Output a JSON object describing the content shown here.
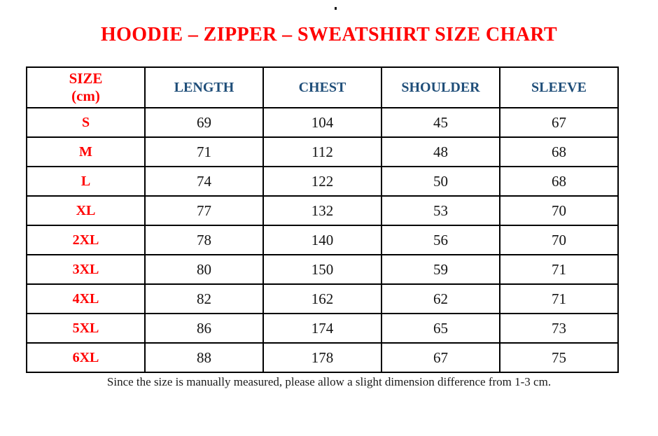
{
  "title": "HOODIE – ZIPPER – SWEATSHIRT SIZE CHART",
  "stray_mark": "",
  "table": {
    "header": {
      "size": {
        "line1": "SIZE",
        "line2": "(cm)"
      },
      "measures": [
        "LENGTH",
        "CHEST",
        "SHOULDER",
        "SLEEVE"
      ]
    },
    "rows": [
      {
        "label": "S",
        "values": [
          "69",
          "104",
          "45",
          "67"
        ]
      },
      {
        "label": "M",
        "values": [
          "71",
          "112",
          "48",
          "68"
        ]
      },
      {
        "label": "L",
        "values": [
          "74",
          "122",
          "50",
          "68"
        ]
      },
      {
        "label": "XL",
        "values": [
          "77",
          "132",
          "53",
          "70"
        ]
      },
      {
        "label": "2XL",
        "values": [
          "78",
          "140",
          "56",
          "70"
        ]
      },
      {
        "label": "3XL",
        "values": [
          "80",
          "150",
          "59",
          "71"
        ]
      },
      {
        "label": "4XL",
        "values": [
          "82",
          "162",
          "62",
          "71"
        ]
      },
      {
        "label": "5XL",
        "values": [
          "86",
          "174",
          "65",
          "73"
        ]
      },
      {
        "label": "6XL",
        "values": [
          "88",
          "178",
          "67",
          "75"
        ]
      }
    ]
  },
  "footer_note": "Since the size is manually measured, please allow a slight dimension difference from 1-3 cm.",
  "colors": {
    "title_red": "#ff0000",
    "size_label_red": "#ff0000",
    "header_blue": "#1f4e79",
    "value_black": "#141414",
    "border_black": "#000000"
  },
  "chart_data": {
    "type": "table",
    "title": "HOODIE – ZIPPER – SWEATSHIRT SIZE CHART",
    "columns": [
      "SIZE (cm)",
      "LENGTH",
      "CHEST",
      "SHOULDER",
      "SLEEVE"
    ],
    "rows": [
      [
        "S",
        69,
        104,
        45,
        67
      ],
      [
        "M",
        71,
        112,
        48,
        68
      ],
      [
        "L",
        74,
        122,
        50,
        68
      ],
      [
        "XL",
        77,
        132,
        53,
        70
      ],
      [
        "2XL",
        78,
        140,
        56,
        70
      ],
      [
        "3XL",
        80,
        150,
        59,
        71
      ],
      [
        "4XL",
        82,
        162,
        62,
        71
      ],
      [
        "5XL",
        86,
        174,
        65,
        73
      ],
      [
        "6XL",
        88,
        178,
        67,
        75
      ]
    ]
  }
}
